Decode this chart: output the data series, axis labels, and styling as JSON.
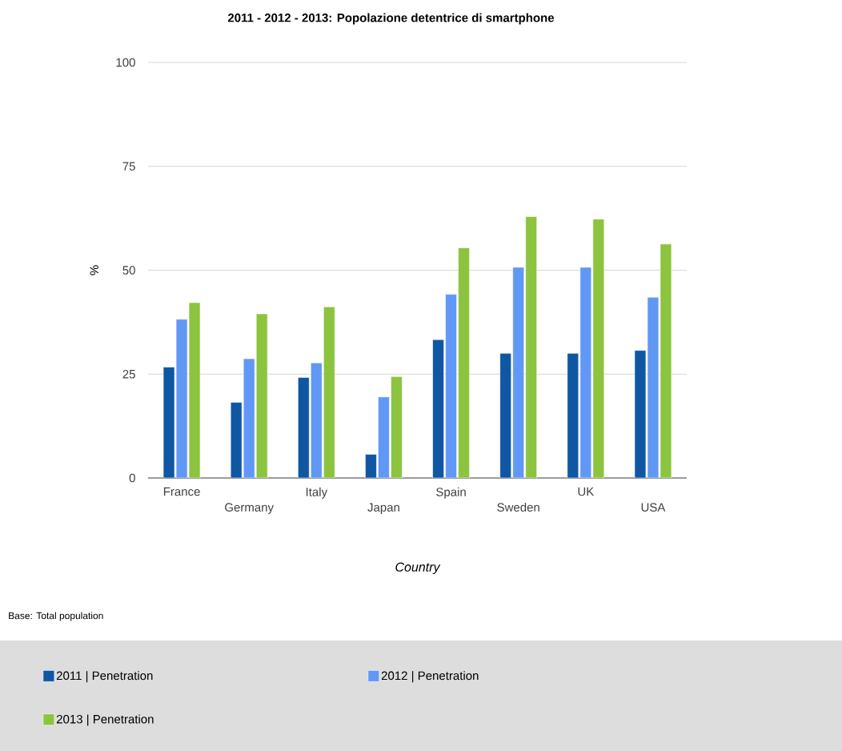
{
  "chart_data": {
    "type": "bar",
    "title": "2011 - 2012 - 2013: Popolazione detentrice di smartphone",
    "xlabel": "Country",
    "ylabel": "%",
    "annotations": [
      "Base: Total population"
    ],
    "categories": [
      "France",
      "Germany",
      "Italy",
      "Japan",
      "Spain",
      "Sweden",
      "UK",
      "USA"
    ],
    "series": [
      {
        "name": "2011 | Penetration",
        "color": "#0f57a3",
        "values": [
          26.7,
          18.2,
          24.2,
          5.7,
          33.3,
          30.0,
          30.0,
          30.7
        ]
      },
      {
        "name": "2012 | Penetration",
        "color": "#6298f5",
        "values": [
          38.2,
          28.7,
          27.7,
          19.5,
          44.2,
          50.7,
          50.7,
          43.5
        ]
      },
      {
        "name": "2013 | Penetration",
        "color": "#8cc43f",
        "values": [
          42.2,
          39.5,
          41.2,
          24.4,
          55.4,
          62.9,
          62.3,
          56.3
        ]
      }
    ],
    "ylim": [
      0,
      100
    ],
    "yticks": [
      0,
      25,
      50,
      75,
      100
    ],
    "grid": "y",
    "legend": "bottom"
  }
}
